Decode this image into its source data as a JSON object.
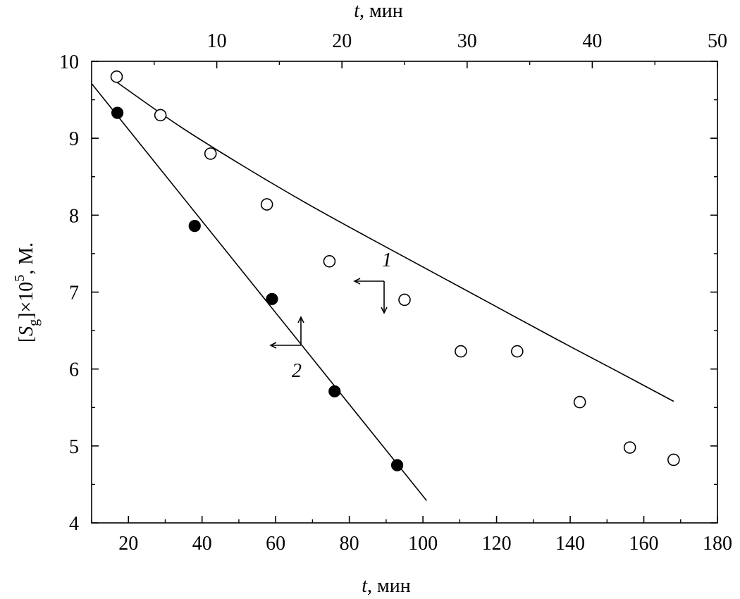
{
  "chart_data": {
    "type": "scatter",
    "title": "",
    "xlabel_bottom": {
      "var": "t",
      "unit": ", мин"
    },
    "xlabel_top": {
      "var": "t",
      "unit": ", мин"
    },
    "ylabel": {
      "open": "[",
      "var": "S",
      "sub": "g",
      "mid": "]×10",
      "sup": "5",
      "tail": ", M."
    },
    "x_bottom_lim": [
      10,
      180
    ],
    "x_top_lim": [
      0,
      50
    ],
    "ylim": [
      4,
      10
    ],
    "x_bottom_ticks": [
      20,
      40,
      60,
      80,
      100,
      120,
      140,
      160,
      180
    ],
    "x_top_ticks": [
      10,
      20,
      30,
      40,
      50
    ],
    "y_ticks": [
      4,
      5,
      6,
      7,
      8,
      9,
      10
    ],
    "grid": false,
    "colors": {
      "axis": "#000000",
      "open_marker_fill": "#ffffff",
      "filled_marker": "#000000"
    },
    "series": [
      {
        "label": "1",
        "axis": "top",
        "marker": "open-circle",
        "x": [
          2,
          5.5,
          9.5,
          14,
          19,
          25,
          29.5,
          34,
          39,
          43,
          46.5
        ],
        "y": [
          9.8,
          9.3,
          8.8,
          8.14,
          7.4,
          6.9,
          6.23,
          6.23,
          5.57,
          4.98,
          4.82
        ],
        "fit": {
          "type": "curve",
          "x": [
            2,
            7,
            12,
            17,
            22,
            27,
            32,
            37,
            42,
            46.5
          ],
          "y": [
            9.73,
            9.16,
            8.65,
            8.17,
            7.72,
            7.28,
            6.84,
            6.4,
            5.97,
            5.58
          ]
        }
      },
      {
        "label": "2",
        "axis": "bottom",
        "marker": "filled-circle",
        "x": [
          17,
          38,
          59,
          76,
          93
        ],
        "y": [
          9.33,
          7.86,
          6.91,
          5.71,
          4.75
        ],
        "fit": {
          "type": "line",
          "x": [
            10,
            101
          ],
          "y": [
            9.71,
            4.29
          ]
        }
      }
    ]
  }
}
